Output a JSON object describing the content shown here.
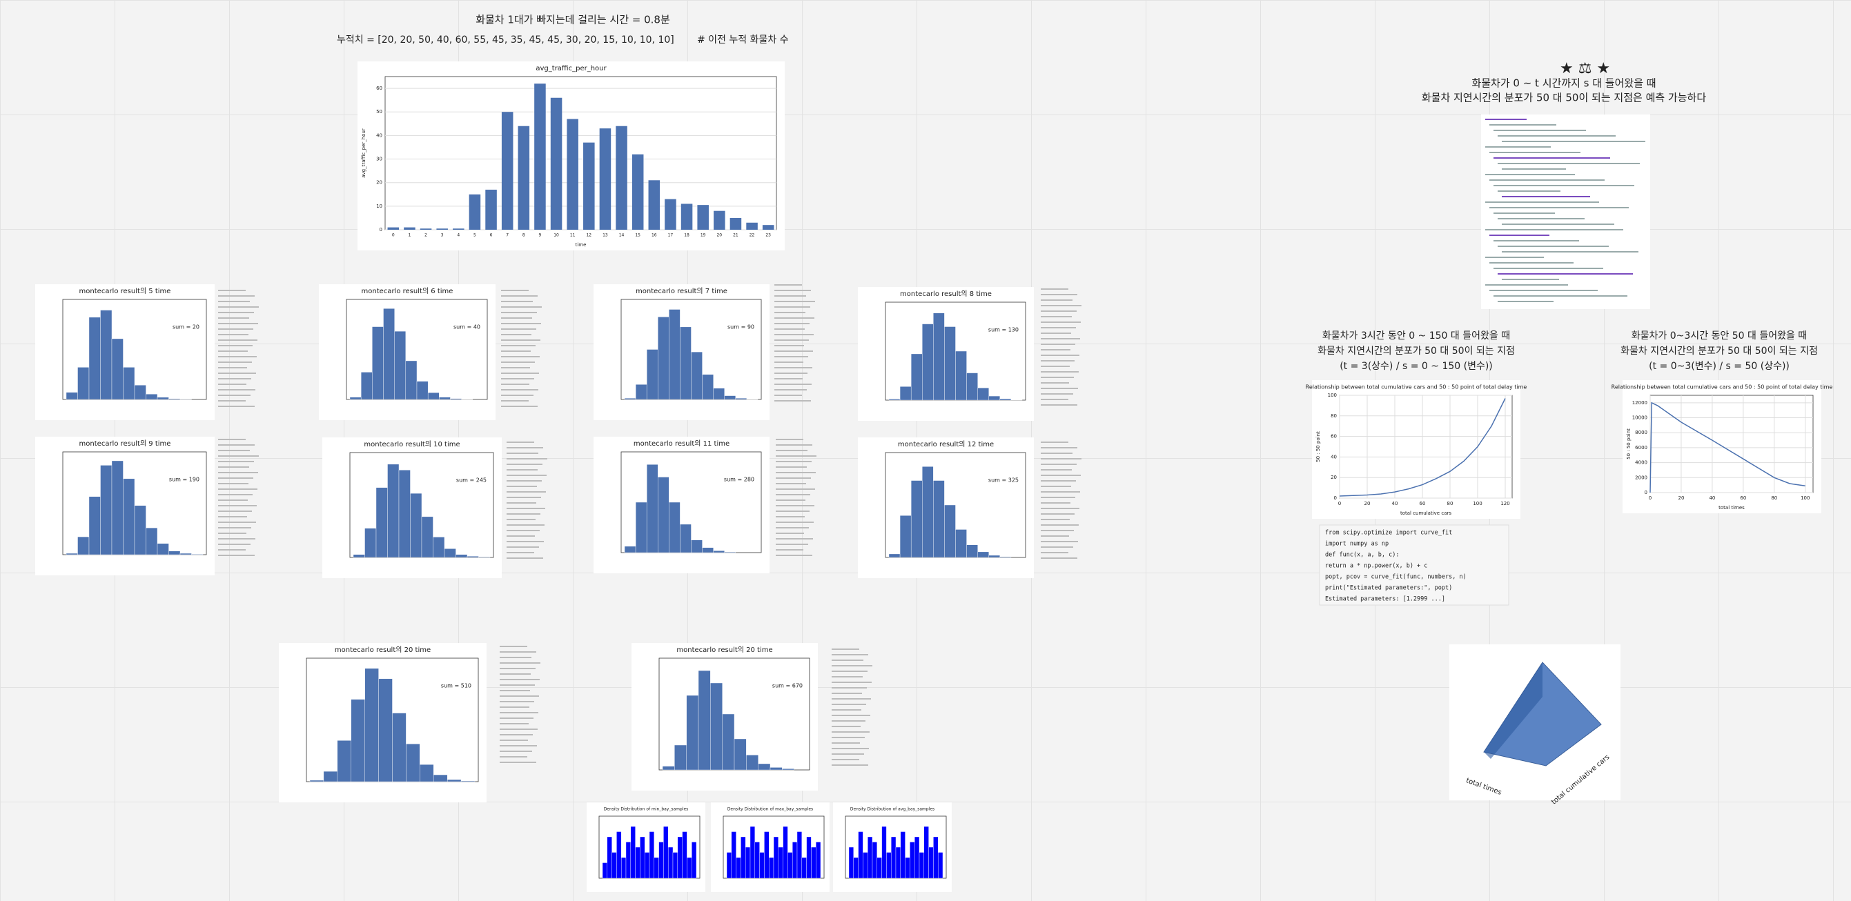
{
  "texts": {
    "unload_time": "화물차 1대가 빠지는데 걸리는 시간 = 0.8분",
    "cumulative": "누적치 = [20, 20, 50, 40, 60, 55, 45, 35, 45, 45, 30, 20, 15, 10, 10, 10]",
    "cumulative_comment": "# 이전 누적 화물차 수",
    "prediction_1": "화물차가 0 ~ t 시간까지 s 대 들어왔을 때",
    "prediction_2": "화물차 지연시간의 분포가 50 대 50이 되는 지점은 예측 가능하다",
    "case_a": [
      "화물차가 3시간 동안 0 ~ 150 대 들어왔을 때",
      "화물차 지연시간의 분포가 50 대 50이 되는 지점",
      "(t = 3(상수) / s = 0 ~ 150 (변수))"
    ],
    "case_b": [
      "화물차가 0~3시간 동안 50 대 들어왔을 때",
      "화물차 지연시간의 분포가 50 대 50이 되는 지점",
      "(t = 0~3(변수) / s = 50 (상수))"
    ],
    "code": [
      "from scipy.optimize import curve_fit",
      "import numpy as np",
      "def func(x, a, b, c):",
      "    return a * np.power(x, b) + c",
      "popt, pcov = curve_fit(func, numbers, n)",
      "print(\"Estimated parameters:\", popt)",
      "Estimated parameters: [1.2999 ...]"
    ],
    "surface_x": "total times",
    "surface_y": "total cumulative cars"
  },
  "chart_data": [
    {
      "type": "bar",
      "title": "avg_traffic_per_hour",
      "xlabel": "time",
      "ylabel": "avg_traffic_per_hour",
      "color": "#4c72b0",
      "grid": true,
      "categories": [
        "0",
        "1",
        "2",
        "3",
        "4",
        "5",
        "6",
        "7",
        "8",
        "9",
        "10",
        "11",
        "12",
        "13",
        "14",
        "15",
        "16",
        "17",
        "18",
        "19",
        "20",
        "21",
        "22",
        "23"
      ],
      "values": [
        1,
        1,
        0.5,
        0.5,
        0.5,
        15,
        17,
        50,
        44,
        62,
        56,
        47,
        37,
        43,
        44,
        32,
        21,
        13,
        11,
        10.5,
        8,
        5,
        3,
        2
      ],
      "ylim": [
        0,
        65
      ],
      "yticks": [
        0,
        10,
        20,
        30,
        40,
        50,
        60
      ]
    },
    {
      "type": "line",
      "title": "Relationship between total cumulative cars and 50 : 50 point of total delay time",
      "xlabel": "total cumulative cars",
      "ylabel": "50 : 50 point",
      "color": "#4c72b0",
      "grid": true,
      "x": [
        0,
        10,
        20,
        30,
        40,
        50,
        60,
        70,
        80,
        90,
        100,
        110,
        120
      ],
      "values": [
        2,
        2.5,
        3,
        4,
        6,
        9,
        13,
        19,
        26,
        36,
        50,
        70,
        97
      ],
      "xlim": [
        0,
        125
      ],
      "ylim": [
        0,
        100
      ],
      "xticks": [
        0,
        20,
        40,
        60,
        80,
        100,
        120
      ],
      "yticks": [
        0,
        20,
        40,
        60,
        80,
        100
      ]
    },
    {
      "type": "line",
      "title": "Relationship between total cumulative cars and 50 : 50 point of total delay time",
      "xlabel": "total times",
      "ylabel": "50 : 50 point",
      "color": "#4c72b0",
      "grid": true,
      "x": [
        0,
        1,
        5,
        20,
        40,
        60,
        80,
        90,
        100
      ],
      "values": [
        0,
        12000,
        11600,
        9400,
        7000,
        4500,
        2000,
        1200,
        900
      ],
      "xlim": [
        0,
        105
      ],
      "ylim": [
        0,
        13000
      ],
      "xticks": [
        0,
        20,
        40,
        60,
        80,
        100
      ],
      "yticks": [
        0,
        2000,
        4000,
        6000,
        8000,
        10000,
        12000
      ]
    },
    {
      "type": "histogram",
      "title": "montecarlo result의 5 time",
      "annotation": "sum = 20",
      "color": "#4c72b0",
      "values": [
        20,
        90,
        230,
        250,
        170,
        90,
        40,
        15,
        6,
        2,
        1,
        0
      ],
      "ylim": [
        0,
        280
      ]
    },
    {
      "type": "histogram",
      "title": "montecarlo result의 6 time",
      "annotation": "sum = 40",
      "color": "#4c72b0",
      "values": [
        10,
        120,
        320,
        400,
        300,
        170,
        80,
        30,
        10,
        4,
        1,
        0
      ],
      "ylim": [
        0,
        440
      ]
    },
    {
      "type": "histogram",
      "title": "montecarlo result의 7 time",
      "annotation": "sum = 90",
      "color": "#4c72b0",
      "values": [
        5,
        60,
        200,
        330,
        360,
        290,
        190,
        100,
        45,
        15,
        5,
        1
      ],
      "ylim": [
        0,
        400
      ]
    },
    {
      "type": "histogram",
      "title": "montecarlo result의 8 time",
      "annotation": "sum = 130",
      "color": "#4c72b0",
      "values": [
        4,
        50,
        170,
        280,
        320,
        270,
        180,
        100,
        45,
        15,
        5,
        1
      ],
      "ylim": [
        0,
        360
      ]
    },
    {
      "type": "histogram",
      "title": "montecarlo result의 9 time",
      "annotation": "sum = 190",
      "color": "#4c72b0",
      "values": [
        3,
        40,
        130,
        200,
        210,
        170,
        110,
        60,
        25,
        8,
        3,
        1
      ],
      "ylim": [
        0,
        230
      ]
    },
    {
      "type": "histogram",
      "title": "montecarlo result의 10 time",
      "annotation": "sum = 245",
      "color": "#4c72b0",
      "values": [
        5,
        50,
        120,
        160,
        150,
        110,
        70,
        35,
        15,
        5,
        2,
        1
      ],
      "ylim": [
        0,
        180
      ]
    },
    {
      "type": "histogram",
      "title": "montecarlo result의 11 time",
      "annotation": "sum = 280",
      "color": "#4c72b0",
      "values": [
        10,
        80,
        140,
        120,
        80,
        45,
        20,
        8,
        3,
        1,
        0,
        0
      ],
      "ylim": [
        0,
        160
      ]
    },
    {
      "type": "histogram",
      "title": "montecarlo result의 12 time",
      "annotation": "sum = 325",
      "color": "#4c72b0",
      "values": [
        5,
        60,
        110,
        130,
        110,
        75,
        40,
        18,
        8,
        3,
        1,
        0
      ],
      "ylim": [
        0,
        150
      ]
    },
    {
      "type": "histogram",
      "title": "montecarlo result의 20 time",
      "annotation": "sum = 510",
      "color": "#4c72b0",
      "values": [
        2,
        15,
        60,
        120,
        165,
        150,
        100,
        55,
        25,
        10,
        3,
        1
      ],
      "ylim": [
        0,
        180
      ]
    },
    {
      "type": "histogram",
      "title": "montecarlo result의 20 time",
      "annotation": "sum = 670",
      "color": "#4c72b0",
      "values": [
        3,
        20,
        60,
        80,
        70,
        45,
        25,
        12,
        5,
        2,
        1,
        0
      ],
      "ylim": [
        0,
        90
      ]
    },
    {
      "type": "histogram",
      "title": "Density Distribution of min_bay_samples",
      "color": "#0000ff",
      "values": [
        3,
        8,
        5,
        9,
        4,
        7,
        10,
        6,
        8,
        5,
        9,
        4,
        7,
        10,
        6,
        5,
        8,
        9,
        4,
        7
      ],
      "ylim": [
        0,
        12
      ]
    },
    {
      "type": "histogram",
      "title": "Density Distribution of max_bay_samples",
      "color": "#0000ff",
      "values": [
        5,
        9,
        4,
        8,
        6,
        10,
        7,
        5,
        9,
        4,
        8,
        6,
        10,
        5,
        7,
        9,
        4,
        8,
        6,
        7
      ],
      "ylim": [
        0,
        12
      ]
    },
    {
      "type": "histogram",
      "title": "Density Distribution of avg_bay_samples",
      "color": "#0000ff",
      "values": [
        6,
        4,
        9,
        5,
        8,
        7,
        4,
        10,
        5,
        8,
        6,
        9,
        4,
        7,
        8,
        5,
        10,
        6,
        8,
        5
      ],
      "ylim": [
        0,
        12
      ]
    }
  ]
}
